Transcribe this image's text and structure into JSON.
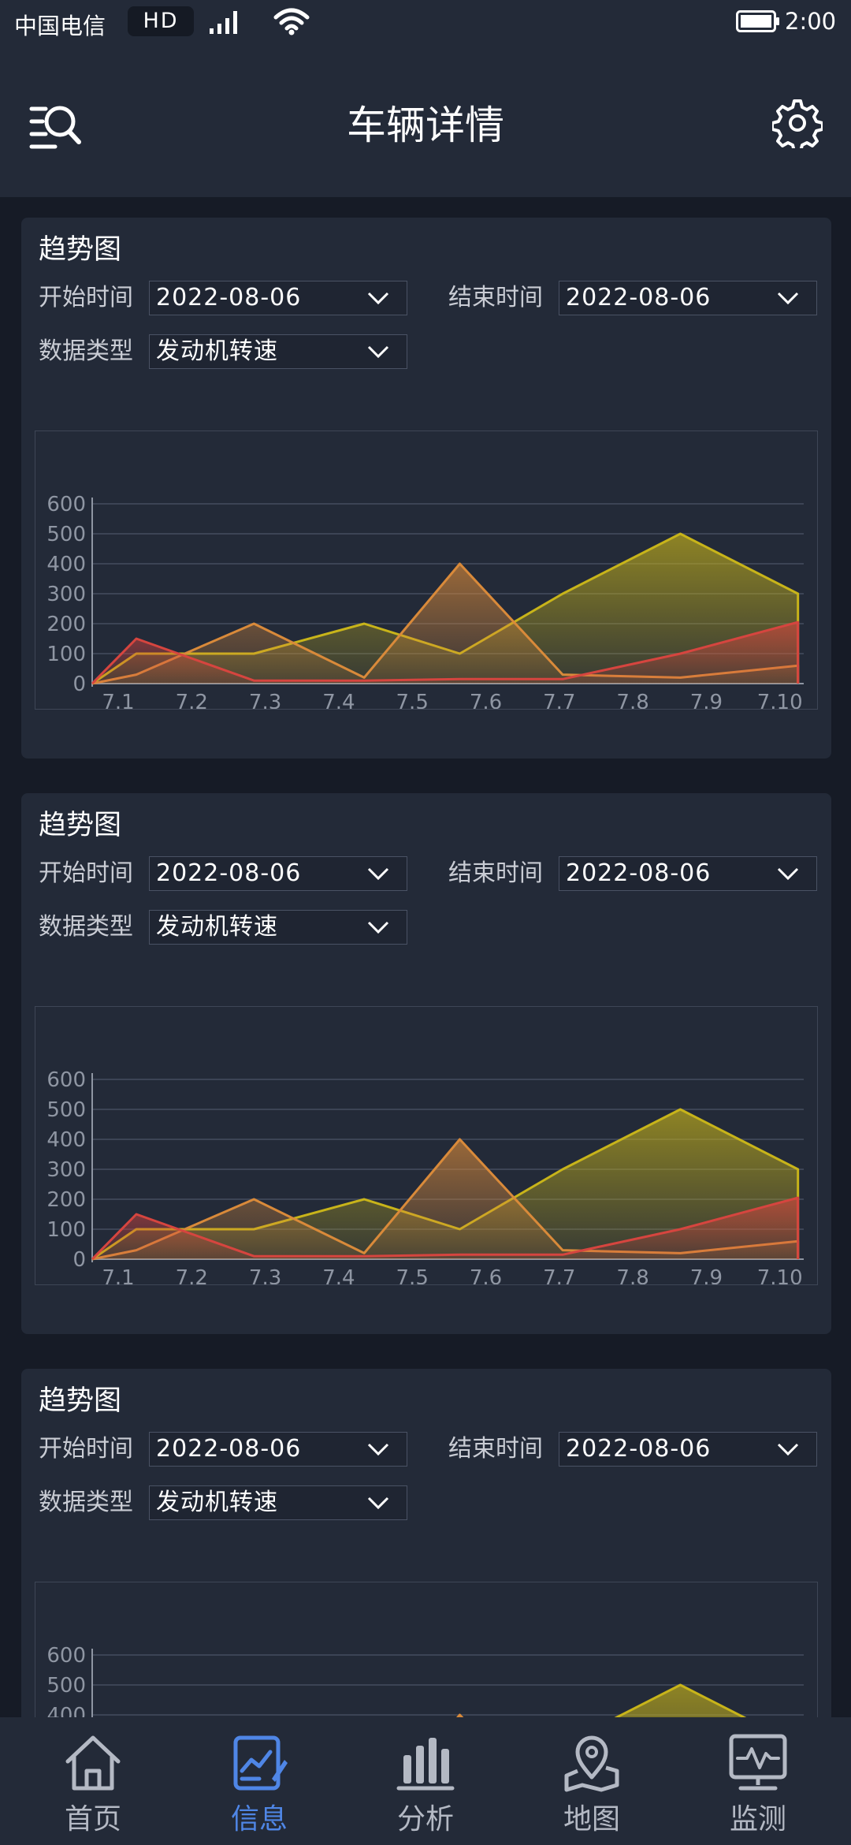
{
  "status_bar": {
    "carrier": "中国电信",
    "network_badge": "HD",
    "time": "2:00",
    "icons": [
      "signal-icon",
      "wifi-icon",
      "battery-icon"
    ]
  },
  "header": {
    "title": "车辆详情",
    "left_icon": "search-list-icon",
    "right_icon": "gear-icon"
  },
  "cards": [
    {
      "title": "趋势图",
      "start_label": "开始时间",
      "start_value": "2022-08-06",
      "end_label": "结束时间",
      "end_value": "2022-08-06",
      "type_label": "数据类型",
      "type_value": "发动机转速"
    },
    {
      "title": "趋势图",
      "start_label": "开始时间",
      "start_value": "2022-08-06",
      "end_label": "结束时间",
      "end_value": "2022-08-06",
      "type_label": "数据类型",
      "type_value": "发动机转速"
    },
    {
      "title": "趋势图",
      "start_label": "开始时间",
      "start_value": "2022-08-06",
      "end_label": "结束时间",
      "end_value": "2022-08-06",
      "type_label": "数据类型",
      "type_value": "发动机转速"
    }
  ],
  "chart_data": {
    "type": "area",
    "categories": [
      "7.1",
      "7.2",
      "7.3",
      "7.4",
      "7.5",
      "7.6",
      "7.7",
      "7.8",
      "7.9",
      "7.10"
    ],
    "ylim": [
      0,
      600
    ],
    "yticks": [
      0,
      100,
      200,
      300,
      400,
      500,
      600
    ],
    "grid": true,
    "series": [
      {
        "color": "#c8b41a",
        "points": [
          [
            0.0,
            0
          ],
          [
            0.6,
            100
          ],
          [
            2.2,
            100
          ],
          [
            3.7,
            200
          ],
          [
            5.0,
            100
          ],
          [
            6.4,
            300
          ],
          [
            8.0,
            500
          ],
          [
            9.6,
            300
          ],
          [
            9.6,
            0
          ]
        ]
      },
      {
        "color": "#d98a3a",
        "points": [
          [
            0.0,
            0
          ],
          [
            0.6,
            30
          ],
          [
            2.2,
            200
          ],
          [
            3.7,
            20
          ],
          [
            5.0,
            400
          ],
          [
            6.4,
            30
          ],
          [
            8.0,
            20
          ],
          [
            9.6,
            60
          ],
          [
            9.6,
            0
          ]
        ]
      },
      {
        "color": "#d6453f",
        "points": [
          [
            0.0,
            0
          ],
          [
            0.6,
            150
          ],
          [
            2.2,
            10
          ],
          [
            3.7,
            10
          ],
          [
            5.0,
            15
          ],
          [
            6.4,
            15
          ],
          [
            8.0,
            100
          ],
          [
            9.6,
            205
          ],
          [
            9.6,
            0
          ]
        ]
      }
    ]
  },
  "bottom_nav": {
    "items": [
      {
        "label": "首页",
        "icon": "home-icon",
        "active": false
      },
      {
        "label": "信息",
        "icon": "info-chart-icon",
        "active": true
      },
      {
        "label": "分析",
        "icon": "bar-chart-icon",
        "active": false
      },
      {
        "label": "地图",
        "icon": "map-pin-icon",
        "active": false
      },
      {
        "label": "监测",
        "icon": "monitor-icon",
        "active": false
      }
    ],
    "active_color": "#4f86e6",
    "inactive_color": "#b4b9c4"
  }
}
